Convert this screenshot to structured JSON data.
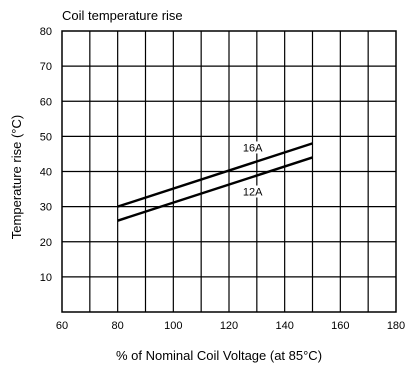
{
  "chart_data": {
    "type": "line",
    "title": "Coil temperature rise",
    "xlabel": "% of Nominal Coil Voltage (at 85°C)",
    "ylabel": "Temperature rise (°C)",
    "xlim": [
      60,
      180
    ],
    "ylim": [
      0,
      80
    ],
    "x_ticks": [
      "60",
      "80",
      "100",
      "120",
      "140",
      "160",
      "180"
    ],
    "y_ticks": [
      "10",
      "20",
      "30",
      "40",
      "50",
      "60",
      "70",
      "80"
    ],
    "grid": true,
    "series": [
      {
        "name": "16A",
        "x": [
          80,
          150
        ],
        "values": [
          30,
          48
        ]
      },
      {
        "name": "12A",
        "x": [
          80,
          150
        ],
        "values": [
          26,
          44
        ]
      }
    ]
  }
}
